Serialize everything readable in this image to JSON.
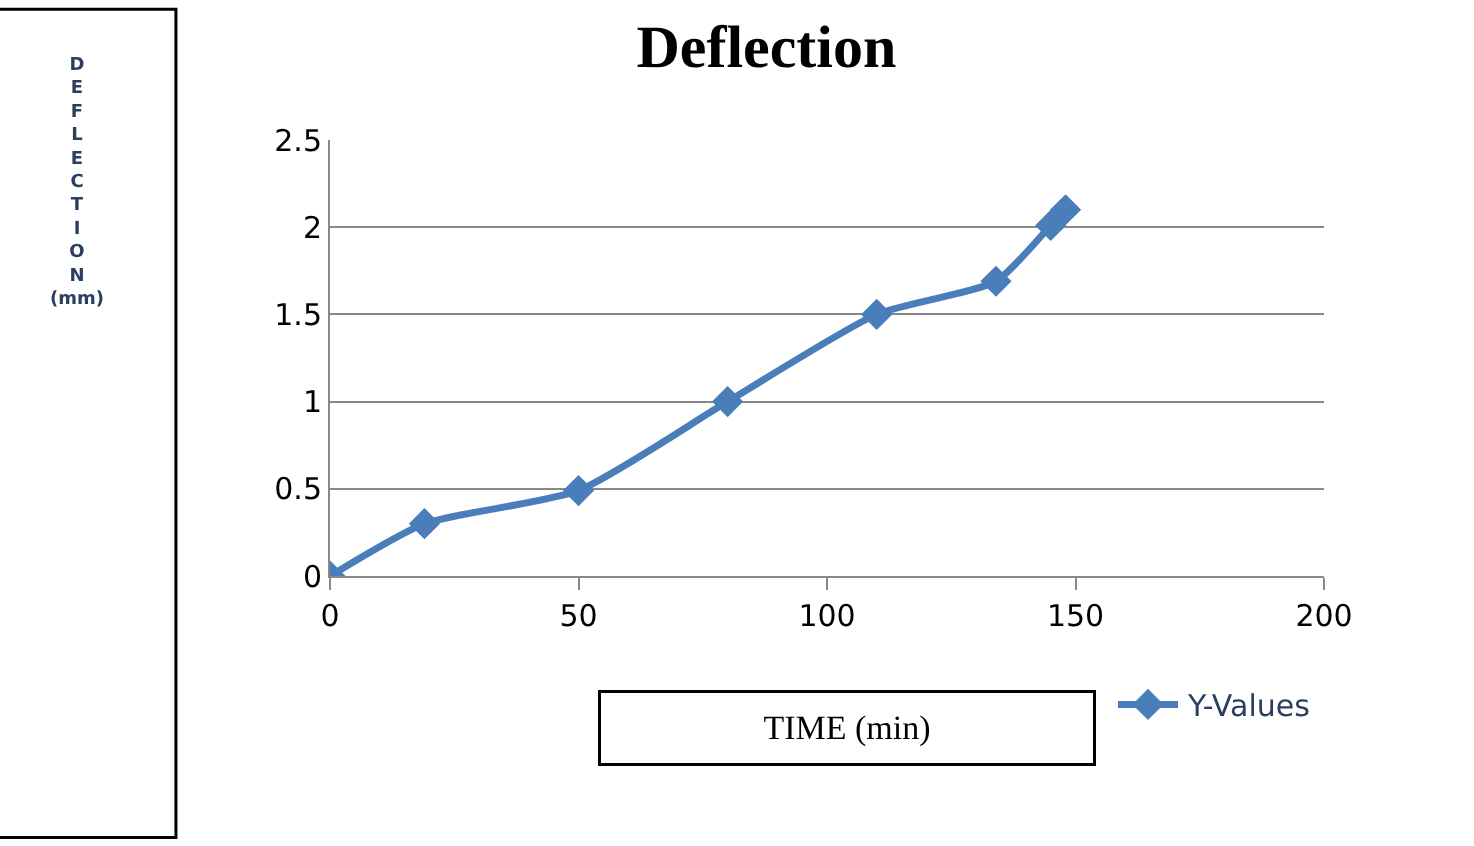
{
  "chart_data": {
    "type": "line",
    "title": "Deflection",
    "xlabel": "TIME (min)",
    "ylabel": "DEFLECTION (mm)",
    "x": [
      0,
      19,
      50,
      80,
      110,
      134,
      145,
      148
    ],
    "series": [
      {
        "name": "Y-Values",
        "color": "#4a7ebb",
        "values": [
          0,
          0.3,
          0.49,
          1.0,
          1.5,
          1.69,
          2.01,
          2.1
        ]
      }
    ],
    "xlim": [
      0,
      200
    ],
    "xticks": [
      0,
      50,
      100,
      150,
      200
    ],
    "ylim": [
      0,
      2.5
    ],
    "yticks": [
      0,
      0.5,
      1,
      1.5,
      2,
      2.5
    ],
    "grid": "y",
    "legend": "bottom right",
    "marker": "diamond",
    "line_style": "solid"
  }
}
